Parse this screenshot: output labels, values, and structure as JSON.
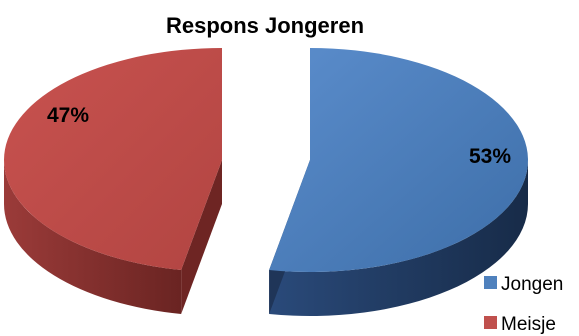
{
  "chart_data": {
    "type": "pie",
    "title": "Respons Jongeren",
    "categories": [
      "Jongen",
      "Meisje"
    ],
    "values": [
      53,
      47
    ],
    "value_labels": [
      "53%",
      "47%"
    ],
    "colors": [
      "#4F81BD",
      "#C0504D"
    ],
    "side_colors": [
      "#1F3558",
      "#6E2523"
    ],
    "exploded": true,
    "three_d": true,
    "legend_position": "bottom-right"
  }
}
